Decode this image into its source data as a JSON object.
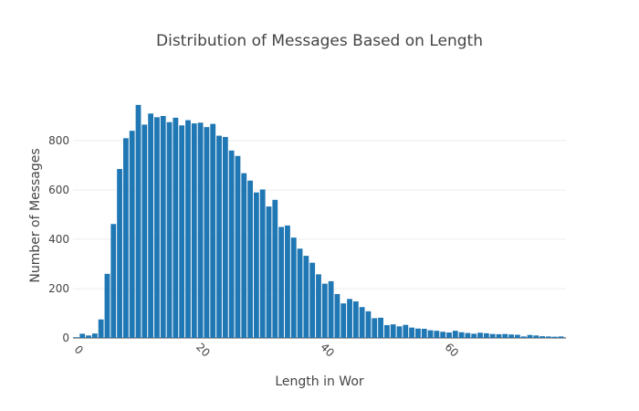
{
  "chart_data": {
    "type": "bar",
    "title": "Distribution of Messages Based on Length",
    "xlabel": "Length in Wor",
    "ylabel": "Number of Messages",
    "xlim": [
      -0.5,
      78.8
    ],
    "ylim": [
      0,
      1000
    ],
    "x_ticks": [
      0,
      20,
      40,
      60
    ],
    "y_ticks": [
      0,
      200,
      400,
      600,
      800
    ],
    "grid": true,
    "bar_color": "#1f77b4",
    "x": [
      0,
      1,
      2,
      3,
      4,
      5,
      6,
      7,
      8,
      9,
      10,
      11,
      12,
      13,
      14,
      15,
      16,
      17,
      18,
      19,
      20,
      21,
      22,
      23,
      24,
      25,
      26,
      27,
      28,
      29,
      30,
      31,
      32,
      33,
      34,
      35,
      36,
      37,
      38,
      39,
      40,
      41,
      42,
      43,
      44,
      45,
      46,
      47,
      48,
      49,
      50,
      51,
      52,
      53,
      54,
      55,
      56,
      57,
      58,
      59,
      60,
      61,
      62,
      63,
      64,
      65,
      66,
      67,
      68,
      69,
      70,
      71,
      72,
      73,
      74,
      75,
      76,
      77,
      78
    ],
    "values": [
      3,
      17,
      10,
      18,
      75,
      260,
      462,
      685,
      810,
      840,
      945,
      865,
      910,
      895,
      900,
      875,
      893,
      862,
      883,
      870,
      873,
      855,
      868,
      820,
      815,
      760,
      738,
      668,
      638,
      590,
      602,
      533,
      560,
      450,
      456,
      407,
      362,
      333,
      305,
      258,
      220,
      230,
      178,
      140,
      158,
      148,
      125,
      108,
      80,
      82,
      52,
      55,
      47,
      53,
      42,
      38,
      37,
      31,
      29,
      25,
      22,
      29,
      23,
      20,
      17,
      21,
      19,
      16,
      15,
      16,
      14,
      13,
      6,
      12,
      10,
      7,
      6,
      5,
      6
    ]
  }
}
